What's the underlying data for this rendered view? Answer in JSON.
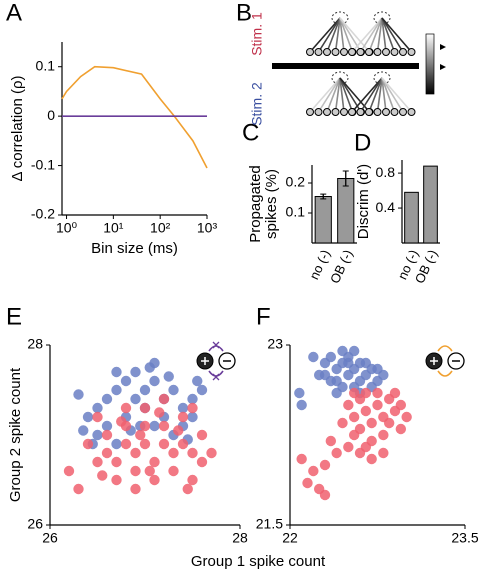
{
  "panels": [
    "A",
    "B",
    "C",
    "D",
    "E",
    "F"
  ],
  "diagram_b": {
    "stim1": "Stim. 1",
    "stim2": "Stim. 2"
  },
  "chart_data": [
    {
      "type": "line",
      "xscale": "log",
      "xlabel": "Bin size (ms)",
      "ylabel": "Δ correlation (ρ)",
      "x": [
        0.8,
        1,
        2,
        4,
        10,
        40,
        100,
        200,
        500,
        1000
      ],
      "series": [
        {
          "color": "#f0a030",
          "values": [
            0.035,
            0.05,
            0.08,
            0.1,
            0.098,
            0.085,
            0.035,
            0.0,
            -0.05,
            -0.105
          ]
        },
        {
          "color": "#6a3d9a",
          "values": [
            0,
            0,
            0,
            0,
            0,
            0,
            0,
            0,
            0,
            0
          ]
        }
      ],
      "xlim": [
        0.8,
        1000
      ],
      "ylim": [
        -0.2,
        0.15
      ],
      "xticks": [
        {
          "value": 1,
          "label": "10⁰"
        },
        {
          "value": 10,
          "label": "10¹"
        },
        {
          "value": 100,
          "label": "10²"
        },
        {
          "value": 1000,
          "label": "10³"
        }
      ],
      "yticks": [
        -0.2,
        -0.1,
        0,
        0.1
      ]
    },
    {
      "type": "bar",
      "ylabel": [
        "Propagated",
        "spikes (%)"
      ],
      "categories": [
        "no (-)",
        "OB (-)"
      ],
      "values": [
        0.155,
        0.215
      ],
      "errors": [
        0.008,
        0.025
      ],
      "color": "#999999",
      "ylim": [
        0,
        0.26
      ],
      "yticks": [
        0.1,
        0.2
      ]
    },
    {
      "type": "bar",
      "ylabel": [
        "Discrim (d')"
      ],
      "categories": [
        "no (-)",
        "OB (-)"
      ],
      "values": [
        0.58,
        0.88
      ],
      "color": "#999999",
      "ylim": [
        0,
        0.95
      ],
      "yticks": [
        0.4,
        0.8
      ]
    },
    {
      "type": "scatter",
      "xlabel": "Group 1 spike count",
      "ylabel": "Group 2 spike count",
      "series": [
        {
          "color": "#6a7fc4",
          "x": [
            26.5,
            26.6,
            26.7,
            26.8,
            26.9,
            27.0,
            27.1,
            27.2,
            27.3,
            27.4,
            27.5,
            26.6,
            26.8,
            27.0,
            27.2,
            27.4,
            26.5,
            26.7,
            27.1,
            27.3,
            26.9,
            27.1,
            26.7,
            27.6,
            26.4,
            26.3,
            27.5,
            26.95,
            27.25,
            26.45,
            27.45,
            26.35,
            26.85,
            27.05,
            27.55
          ],
          "values": [
            27.3,
            27.4,
            27.5,
            27.6,
            27.4,
            27.5,
            27.6,
            27.4,
            27.5,
            27.3,
            27.4,
            27.1,
            27.2,
            27.3,
            27.2,
            27.1,
            27.0,
            26.9,
            27.1,
            27.0,
            27.7,
            27.8,
            27.7,
            27.5,
            27.2,
            27.45,
            27.2,
            27.1,
            27.65,
            26.9,
            26.95,
            27.05,
            27.05,
            27.75,
            27.6
          ]
        },
        {
          "color": "#f0606e",
          "x": [
            26.6,
            26.7,
            26.8,
            26.9,
            27.0,
            27.1,
            27.2,
            27.3,
            27.4,
            27.5,
            26.6,
            26.8,
            27.0,
            27.2,
            27.4,
            26.9,
            27.1,
            26.7,
            27.3,
            27.5,
            26.5,
            26.4,
            27.6,
            27.7,
            26.2,
            26.3,
            26.9,
            27.0,
            27.2,
            26.8,
            27.5,
            26.5,
            27.6,
            27.05,
            26.75,
            27.35,
            26.95,
            26.55,
            27.15,
            27.45
          ],
          "values": [
            26.8,
            26.7,
            26.9,
            26.8,
            26.9,
            26.7,
            26.9,
            26.8,
            26.9,
            26.8,
            27.0,
            27.1,
            27.1,
            27.1,
            27.2,
            26.6,
            26.5,
            26.5,
            26.6,
            26.5,
            26.7,
            26.9,
            27.0,
            26.8,
            26.6,
            26.4,
            26.4,
            27.3,
            27.4,
            27.3,
            27.3,
            27.2,
            26.7,
            26.6,
            27.15,
            27.05,
            27.0,
            26.55,
            27.25,
            26.4
          ]
        }
      ],
      "xlim": [
        26,
        28
      ],
      "ylim": [
        26,
        28
      ],
      "xticks": [
        26,
        28
      ],
      "yticks": [
        26,
        28
      ]
    },
    {
      "type": "scatter",
      "series": [
        {
          "color": "#6a7fc4",
          "x": [
            22.25,
            22.3,
            22.35,
            22.4,
            22.45,
            22.5,
            22.55,
            22.6,
            22.65,
            22.7,
            22.75,
            22.4,
            22.5,
            22.6,
            22.55,
            22.45,
            22.35,
            22.3,
            22.5,
            22.65,
            22.7,
            22.8,
            22.45,
            22.2,
            22.55,
            22.4,
            22.08,
            22.1,
            22.6,
            22.75
          ],
          "values": [
            22.75,
            22.85,
            22.9,
            22.8,
            22.85,
            22.9,
            22.8,
            22.85,
            22.75,
            22.8,
            22.7,
            22.7,
            22.75,
            22.7,
            22.65,
            22.65,
            22.7,
            22.75,
            22.85,
            22.85,
            22.65,
            22.75,
            22.95,
            22.9,
            22.95,
            22.6,
            22.6,
            22.5,
            22.6,
            22.8
          ]
        },
        {
          "color": "#f0606e",
          "x": [
            22.5,
            22.55,
            22.6,
            22.65,
            22.7,
            22.75,
            22.8,
            22.85,
            22.9,
            22.95,
            22.6,
            22.7,
            22.8,
            22.65,
            22.75,
            22.55,
            22.5,
            22.45,
            22.4,
            22.85,
            22.95,
            23.0,
            22.7,
            22.6,
            22.35,
            22.3,
            22.2,
            22.15,
            22.25,
            22.3,
            22.1,
            22.9,
            22.55,
            22.8,
            22.65
          ],
          "values": [
            22.5,
            22.4,
            22.55,
            22.45,
            22.35,
            22.5,
            22.4,
            22.55,
            22.45,
            22.3,
            22.3,
            22.2,
            22.25,
            22.6,
            22.6,
            22.25,
            22.15,
            22.35,
            22.1,
            22.35,
            22.5,
            22.4,
            22.05,
            22.1,
            22.2,
            22.0,
            21.95,
            21.85,
            21.8,
            21.75,
            22.05,
            22.6,
            22.6,
            22.1,
            22.15
          ]
        }
      ],
      "xlim": [
        22,
        23.5
      ],
      "ylim": [
        21.5,
        23
      ],
      "xticks": [
        22,
        23.5
      ],
      "yticks": [
        21.5,
        23
      ]
    }
  ]
}
